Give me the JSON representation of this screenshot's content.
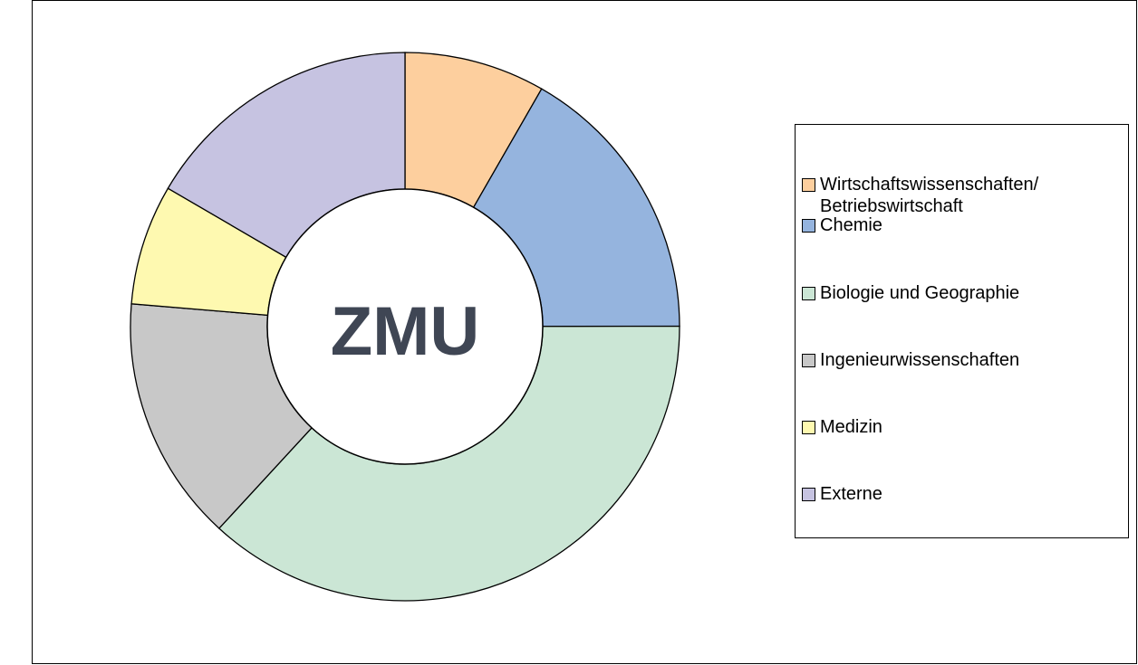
{
  "chart_data": {
    "type": "donut",
    "center_label": "ZMU",
    "categories": [
      "Wirtschaftswissenschaften/\nBetriebswirtschaft",
      "Chemie",
      "Biologie und Geographie",
      "Ingenieurwissenschaften",
      "Medizin",
      "Externe"
    ],
    "values": [
      8.3,
      16.7,
      36.9,
      14.5,
      7.1,
      16.6
    ],
    "colors": [
      "#fdcf9e",
      "#95b4de",
      "#cbe6d5",
      "#c8c8c8",
      "#fef9b0",
      "#c6c3e1"
    ],
    "legend": "right"
  }
}
